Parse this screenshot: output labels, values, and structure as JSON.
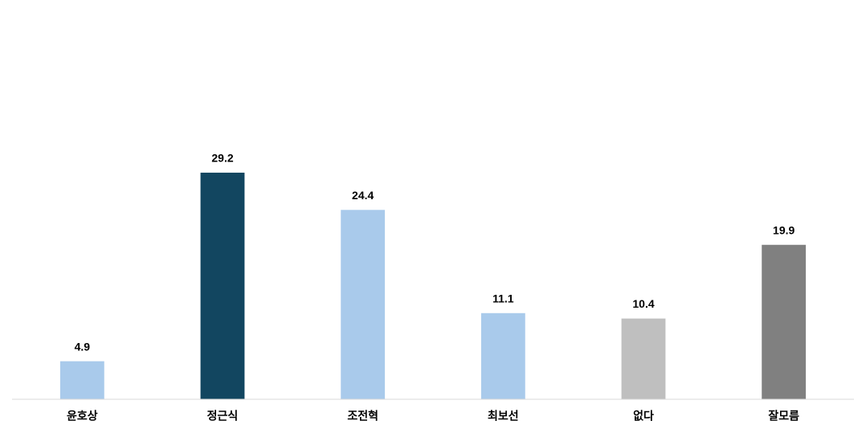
{
  "chart_data": {
    "type": "bar",
    "categories": [
      "윤호상",
      "정근식",
      "조전혁",
      "최보선",
      "없다",
      "잘모름"
    ],
    "values": [
      4.9,
      29.2,
      24.4,
      11.1,
      10.4,
      19.9
    ],
    "colors": [
      "#a9caeb",
      "#124660",
      "#a9caeb",
      "#a9caeb",
      "#bfbfbf",
      "#808080"
    ],
    "ylim": [
      0,
      50
    ]
  }
}
